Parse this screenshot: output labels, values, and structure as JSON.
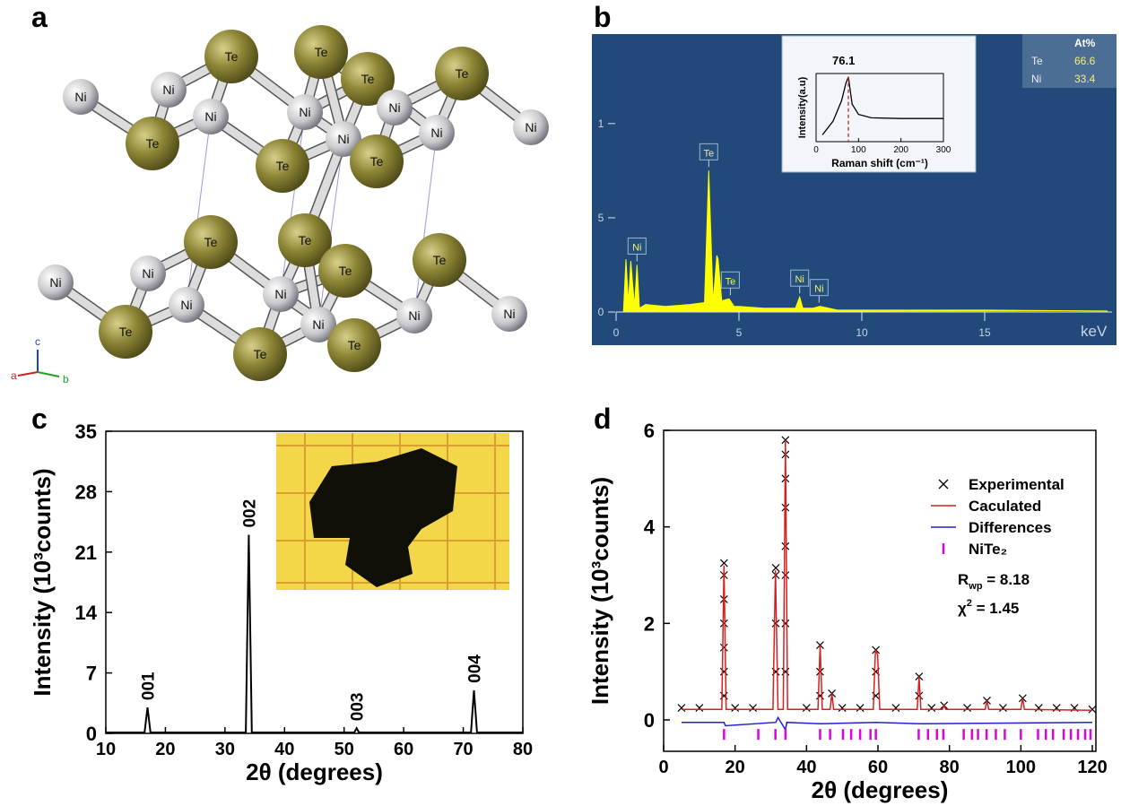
{
  "panel_labels": [
    "a",
    "b",
    "c",
    "d"
  ],
  "structure": {
    "atoms": [
      "Ni",
      "Ni",
      "Ni",
      "Ni",
      "Ni",
      "Ni",
      "Ni",
      "Ni",
      "Te",
      "Te",
      "Te",
      "Te",
      "Te",
      "Te",
      "Te",
      "Te",
      "Te",
      "Te",
      "Te",
      "Te",
      "Te",
      "Te",
      "Ni",
      "Ni",
      "Ni",
      "Ni",
      "Ni",
      "Ni",
      "Ni"
    ],
    "axes": [
      "c",
      "a",
      "b"
    ]
  },
  "chart_data": [
    {
      "type": "area",
      "xlim": [
        0,
        20
      ],
      "xticks": [
        0,
        5,
        10,
        15
      ],
      "xlabel": "keV",
      "ylim": [
        0,
        1.47
      ],
      "yticks": [
        0,
        {
          "value": 0.5,
          "label": "5"
        },
        1
      ],
      "series": [
        {
          "color": "#ffff00",
          "x": [
            0.3,
            0.4,
            0.5,
            0.6,
            0.75,
            0.85,
            0.95,
            1.2,
            2,
            3,
            3.6,
            3.77,
            3.95,
            4.1,
            4.15,
            4.3,
            4.6,
            4.8,
            5,
            6,
            7.3,
            7.47,
            7.6,
            8,
            8.3,
            9,
            12,
            15,
            20
          ],
          "values": [
            0,
            0.28,
            0.05,
            0.27,
            0.03,
            0.25,
            0.02,
            0.04,
            0.03,
            0.04,
            0.05,
            0.75,
            0.05,
            0.3,
            0.28,
            0.06,
            0.07,
            0.03,
            0.03,
            0.02,
            0.02,
            0.08,
            0.02,
            0.02,
            0.03,
            0.01,
            0.01,
            0.01,
            0.005
          ]
        }
      ],
      "peak_labels": [
        {
          "label": "Ni",
          "x": 0.85
        },
        {
          "label": "Te",
          "x": 3.77
        },
        {
          "label": "Te",
          "x": 4.65
        },
        {
          "label": "Ni",
          "x": 7.47
        },
        {
          "label": "Ni",
          "x": 8.26
        }
      ],
      "table": {
        "header": "At%",
        "rows": [
          [
            "Te",
            66.6
          ],
          [
            "Ni",
            33.4
          ]
        ]
      },
      "inset": {
        "type": "line",
        "xlabel": "Raman shift (cm⁻¹)",
        "ylabel": "Intensity(a.u)",
        "xlim": [
          0,
          300
        ],
        "xticks": [
          0,
          100,
          200,
          300
        ],
        "ylim": [
          0,
          1
        ],
        "peak": 76.1,
        "series": [
          {
            "color": "#000000",
            "x": [
              15,
              40,
              60,
              70,
              76.1,
              85,
              100,
              130,
              200,
              300
            ],
            "values": [
              0.1,
              0.3,
              0.6,
              0.85,
              0.95,
              0.55,
              0.4,
              0.35,
              0.34,
              0.34
            ]
          }
        ]
      }
    },
    {
      "type": "line",
      "xlabel": "2θ (degrees)",
      "ylabel": "Intensity (10³counts)",
      "xlim": [
        10,
        80
      ],
      "xticks": [
        10,
        20,
        30,
        40,
        50,
        60,
        70,
        80
      ],
      "ylim": [
        0,
        35
      ],
      "yticks": [
        0,
        7,
        14,
        21,
        28,
        35
      ],
      "series": [
        {
          "color": "#000000",
          "x": [
            10,
            16.5,
            17,
            17.5,
            33.5,
            34,
            34.5,
            51.7,
            52.1,
            52.5,
            71.3,
            71.8,
            72.3,
            80
          ],
          "values": [
            0.1,
            0.1,
            3,
            0.1,
            0.1,
            23,
            0.1,
            0.1,
            0.6,
            0.1,
            0.1,
            5,
            0.1,
            0.1
          ]
        }
      ],
      "peak_labels": [
        {
          "label": "001",
          "x": 17
        },
        {
          "label": "002",
          "x": 34
        },
        {
          "label": "003",
          "x": 52.1
        },
        {
          "label": "004",
          "x": 71.8
        }
      ]
    },
    {
      "type": "rietveld",
      "xlabel": "2θ (degrees)",
      "ylabel": "Intensity (10³counts)",
      "xlim": [
        0,
        121
      ],
      "xticks": [
        0,
        20,
        40,
        60,
        80,
        100,
        120
      ],
      "ylim": [
        -0.65,
        6
      ],
      "yticks": [
        0,
        2,
        4,
        6
      ],
      "series": [
        {
          "name": "Experimental",
          "style": "cross",
          "color": "#000000",
          "x": [
            5,
            10,
            16.9,
            16.9,
            16.9,
            16.9,
            16.9,
            16.9,
            16.9,
            20,
            25,
            31.4,
            31.4,
            31.4,
            31.4,
            34.1,
            34.1,
            34.1,
            34.1,
            34.1,
            34.1,
            34.1,
            34.1,
            40,
            43.8,
            43.8,
            43.8,
            47.1,
            50,
            55,
            59.4,
            59.4,
            59.4,
            65,
            71.5,
            71.5,
            75,
            78.5,
            85,
            90.5,
            95,
            100.5,
            105,
            110,
            115,
            120
          ],
          "values": [
            0.25,
            0.25,
            0.5,
            1,
            1.5,
            2,
            2.5,
            3,
            3.25,
            0.25,
            0.25,
            1,
            2,
            3,
            3.15,
            1,
            2,
            3,
            3.6,
            4.4,
            5,
            5.5,
            5.8,
            0.25,
            0.5,
            1,
            1.55,
            0.55,
            0.25,
            0.25,
            0.5,
            1,
            1.45,
            0.25,
            0.5,
            0.9,
            0.25,
            0.3,
            0.25,
            0.4,
            0.25,
            0.45,
            0.25,
            0.25,
            0.25,
            0.22
          ]
        },
        {
          "name": "Caculated",
          "style": "line",
          "color": "#d62020",
          "x": [
            5,
            16.3,
            16.9,
            17.5,
            30.6,
            31.3,
            32.0,
            33.5,
            34.1,
            34.7,
            43.2,
            43.8,
            44.4,
            46.6,
            47.1,
            47.6,
            58.7,
            59.3,
            59.9,
            60.5,
            71.0,
            71.5,
            72.0,
            78.0,
            78.5,
            79.0,
            90.0,
            90.5,
            91.0,
            100.0,
            100.5,
            101.0,
            120
          ],
          "values": [
            0.22,
            0.22,
            3.2,
            0.22,
            0.22,
            3.1,
            0.22,
            0.22,
            5.8,
            0.22,
            0.22,
            1.55,
            0.22,
            0.22,
            0.55,
            0.22,
            0.22,
            1.45,
            1.35,
            0.22,
            0.22,
            0.9,
            0.22,
            0.22,
            0.3,
            0.22,
            0.22,
            0.4,
            0.22,
            0.22,
            0.45,
            0.22,
            0.2
          ]
        },
        {
          "name": "Differences",
          "style": "line",
          "color": "#2222cc",
          "x": [
            5,
            16.9,
            17.3,
            31.4,
            32,
            34.1,
            34.5,
            44,
            59.5,
            72,
            120
          ],
          "values": [
            -0.05,
            -0.05,
            -0.12,
            -0.05,
            0.05,
            -0.2,
            -0.05,
            -0.08,
            -0.05,
            -0.08,
            -0.05
          ]
        },
        {
          "name": "NiTe₂",
          "style": "tick",
          "color": "#e000e0",
          "x": [
            16.9,
            26.5,
            31.3,
            34.1,
            43.8,
            46.6,
            50.2,
            52.5,
            55,
            57.9,
            59.4,
            71.4,
            74,
            76.5,
            78.3,
            84,
            86.3,
            88,
            90.4,
            93,
            95.5,
            100,
            104.8,
            107,
            109,
            112,
            114,
            116,
            118,
            119.5
          ],
          "values": [
            -0.3,
            -0.3,
            -0.3,
            -0.3,
            -0.3,
            -0.3,
            -0.3,
            -0.3,
            -0.3,
            -0.3,
            -0.3,
            -0.3,
            -0.3,
            -0.3,
            -0.3,
            -0.3,
            -0.3,
            -0.3,
            -0.3,
            -0.3,
            -0.3,
            -0.3,
            -0.3,
            -0.3,
            -0.3,
            -0.3,
            -0.3,
            -0.3,
            -0.3,
            -0.3
          ]
        }
      ],
      "annotations": [
        {
          "base": "R",
          "sub": "wp",
          "text": " = 8.18"
        },
        {
          "base": "χ",
          "sup": "2",
          "text": " = 1.45"
        }
      ]
    }
  ]
}
